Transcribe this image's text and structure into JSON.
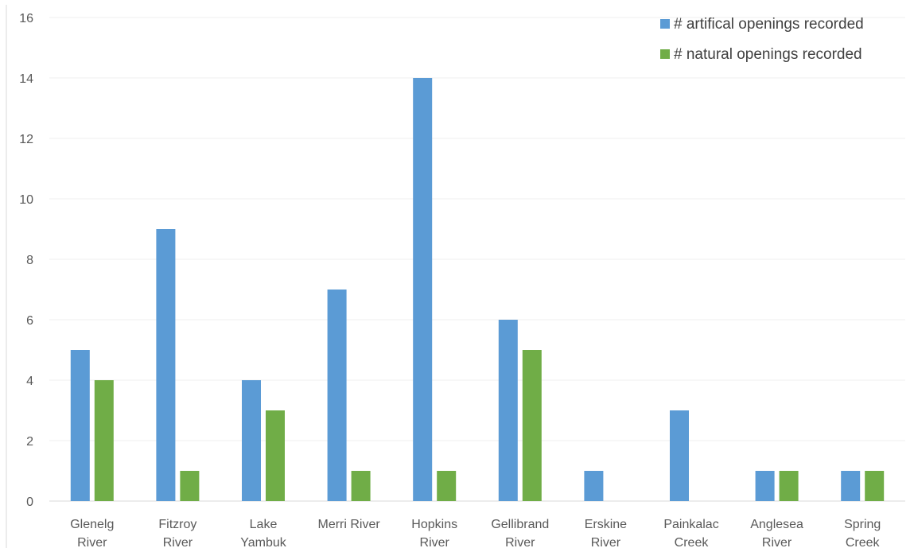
{
  "chart_data": {
    "type": "bar",
    "title": "",
    "xlabel": "",
    "ylabel": "",
    "ylim": [
      0,
      16
    ],
    "yticks": [
      0,
      2,
      4,
      6,
      8,
      10,
      12,
      14,
      16
    ],
    "grid": true,
    "legend_position": "top-right",
    "categories": [
      [
        "Glenelg",
        "River"
      ],
      [
        "Fitzroy",
        "River"
      ],
      [
        "Lake",
        "Yambuk"
      ],
      [
        "Merri River"
      ],
      [
        "Hopkins",
        "River"
      ],
      [
        "Gellibrand",
        "River"
      ],
      [
        "Erskine",
        "River"
      ],
      [
        "Painkalac",
        "Creek"
      ],
      [
        "Anglesea",
        "River"
      ],
      [
        "Spring",
        "Creek"
      ]
    ],
    "series": [
      {
        "name": "# artifical openings recorded",
        "color": "#5b9bd5",
        "values": [
          5,
          9,
          4,
          7,
          14,
          6,
          1,
          3,
          1,
          1
        ]
      },
      {
        "name": "# natural openings recorded",
        "color": "#70ad47",
        "values": [
          4,
          1,
          3,
          1,
          1,
          5,
          0,
          0,
          1,
          1
        ]
      }
    ]
  }
}
